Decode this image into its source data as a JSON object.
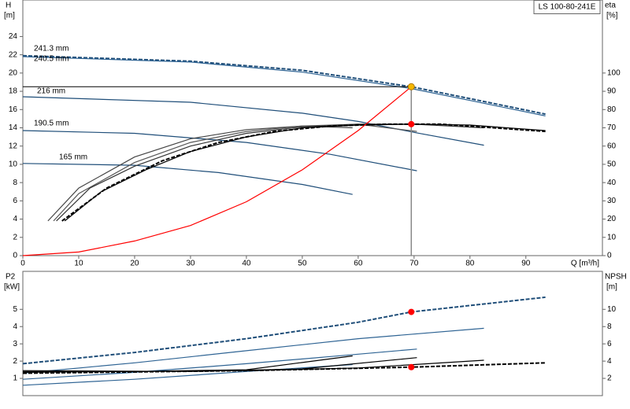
{
  "chart_data": [
    {
      "type": "line",
      "label": "LS 100-80-241E",
      "y_label": "H",
      "y_unit": "[m]",
      "y2_label": "eta",
      "y2_unit": "[%]",
      "x_label": "Q [m³/h]",
      "xlim": [
        0,
        103.7
      ],
      "ylim": [
        0,
        28
      ],
      "y2lim": [
        0,
        140
      ],
      "xticks": [
        0,
        10,
        20,
        30,
        40,
        50,
        60,
        70,
        80,
        90
      ],
      "yticks": [
        0,
        2,
        4,
        6,
        8,
        10,
        12,
        14,
        16,
        18,
        20,
        22,
        24
      ],
      "y2ticks": [
        0,
        10,
        20,
        30,
        40,
        50,
        60,
        70,
        80,
        90,
        100
      ],
      "series": [
        {
          "name": "241.3 mm",
          "color": "#1f4e79",
          "dash": true,
          "x": [
            0,
            30,
            50,
            69.5,
            80,
            93.5
          ],
          "values": [
            21.9,
            21.3,
            20.3,
            18.5,
            17.2,
            15.5
          ]
        },
        {
          "name": "240.5 mm",
          "color": "#2f6494",
          "dash": false,
          "x": [
            0,
            30,
            50,
            69.5,
            80,
            93.5
          ],
          "values": [
            21.8,
            21.2,
            20.1,
            18.3,
            17.0,
            15.3
          ]
        },
        {
          "name": "216 mm",
          "color": "#1f4e79",
          "x": [
            0,
            30,
            50,
            60,
            70,
            82.5
          ],
          "values": [
            17.4,
            16.8,
            15.6,
            14.7,
            13.5,
            12.1
          ]
        },
        {
          "name": "190.5 mm",
          "color": "#1f4e79",
          "x": [
            0,
            20,
            40,
            55,
            70.5
          ],
          "values": [
            13.7,
            13.4,
            12.4,
            11.1,
            9.3
          ]
        },
        {
          "name": "165 mm",
          "color": "#1f4e79",
          "x": [
            0,
            20,
            35,
            50,
            59
          ],
          "values": [
            10.1,
            9.9,
            9.1,
            7.8,
            6.7
          ]
        },
        {
          "color": "#444444",
          "axis": "y2",
          "x": [
            4.5,
            10,
            20,
            30,
            40,
            50,
            59
          ],
          "values": [
            19,
            37,
            54,
            64,
            69,
            71,
            70
          ]
        },
        {
          "color": "#555555",
          "axis": "y2",
          "x": [
            5.5,
            10,
            20,
            30,
            40,
            50,
            60,
            70.5
          ],
          "values": [
            19,
            34,
            51,
            62,
            68,
            71,
            72,
            68
          ]
        },
        {
          "color": "#333333",
          "axis": "y2",
          "x": [
            6,
            12,
            20,
            30,
            40,
            50,
            60,
            70,
            82.5
          ],
          "values": [
            19,
            37,
            49,
            60,
            67,
            70.5,
            72,
            72,
            70
          ]
        },
        {
          "color": "#000000",
          "axis": "y2",
          "dash": true,
          "x": [
            7,
            15,
            25,
            35,
            45,
            55,
            65,
            75,
            93.5
          ],
          "values": [
            19,
            37,
            52,
            62,
            68,
            71,
            72,
            72,
            68
          ]
        },
        {
          "color": "#000000",
          "axis": "y2",
          "x": [
            7.5,
            14,
            22,
            30,
            40,
            50,
            60,
            70,
            80,
            93.5
          ],
          "values": [
            19,
            35,
            47,
            57,
            65,
            70,
            71.5,
            72,
            71.5,
            68.5
          ]
        },
        {
          "color": "#ff0000",
          "x": [
            0,
            10,
            20,
            30,
            40,
            50,
            60,
            69.5
          ],
          "values": [
            0,
            0.4,
            1.6,
            3.3,
            5.9,
            9.4,
            13.7,
            18.5
          ]
        },
        {
          "color": "#f5b800",
          "marker": true,
          "guides": true,
          "x": [
            69.5
          ],
          "values": [
            18.5
          ]
        },
        {
          "color": "#ff0000",
          "axis": "y2",
          "marker": true,
          "x": [
            69.5
          ],
          "values": [
            72
          ]
        }
      ]
    },
    {
      "type": "line",
      "y_label": "P2",
      "y_unit": "[kW]",
      "y2_label": "NPSH",
      "y2_unit": "[m]",
      "xlim": [
        0,
        103.7
      ],
      "ylim": [
        0,
        7.2
      ],
      "y2lim": [
        0,
        14.4
      ],
      "yticks": [
        1,
        2,
        3,
        4,
        5
      ],
      "y2ticks": [
        2,
        4,
        6,
        8,
        10
      ],
      "series": [
        {
          "color": "#1f4e79",
          "dash": true,
          "x": [
            0,
            20,
            40,
            60,
            69.5,
            93.5
          ],
          "values": [
            1.85,
            2.5,
            3.3,
            4.25,
            4.85,
            5.7
          ]
        },
        {
          "color": "#2f6494",
          "x": [
            0,
            20,
            40,
            60,
            82.5
          ],
          "values": [
            1.3,
            1.9,
            2.6,
            3.3,
            3.9
          ]
        },
        {
          "color": "#2f6494",
          "x": [
            0,
            20,
            40,
            60,
            70.5
          ],
          "values": [
            0.95,
            1.35,
            1.85,
            2.4,
            2.7
          ]
        },
        {
          "color": "#2f6494",
          "x": [
            0,
            20,
            40,
            59
          ],
          "values": [
            0.6,
            0.95,
            1.4,
            1.8
          ]
        },
        {
          "color": "#000000",
          "axis": "y2",
          "x": [
            0,
            20,
            40,
            59
          ],
          "values": [
            2.8,
            2.8,
            3.0,
            4.6
          ]
        },
        {
          "color": "#000000",
          "axis": "y2",
          "x": [
            0,
            30,
            50,
            70.5
          ],
          "values": [
            2.9,
            2.8,
            3.1,
            4.4
          ]
        },
        {
          "color": "#000000",
          "axis": "y2",
          "x": [
            0,
            40,
            60,
            82.5
          ],
          "values": [
            2.7,
            2.9,
            3.2,
            4.1
          ]
        },
        {
          "color": "#000000",
          "axis": "y2",
          "dash": true,
          "x": [
            0,
            40,
            69.5,
            93.5
          ],
          "values": [
            2.6,
            2.9,
            3.3,
            3.8
          ]
        },
        {
          "color": "#ff0000",
          "marker": true,
          "x": [
            69.5
          ],
          "values": [
            4.85
          ]
        },
        {
          "color": "#ff0000",
          "axis": "y2",
          "marker": true,
          "x": [
            69.5
          ],
          "values": [
            3.3
          ]
        }
      ]
    }
  ]
}
